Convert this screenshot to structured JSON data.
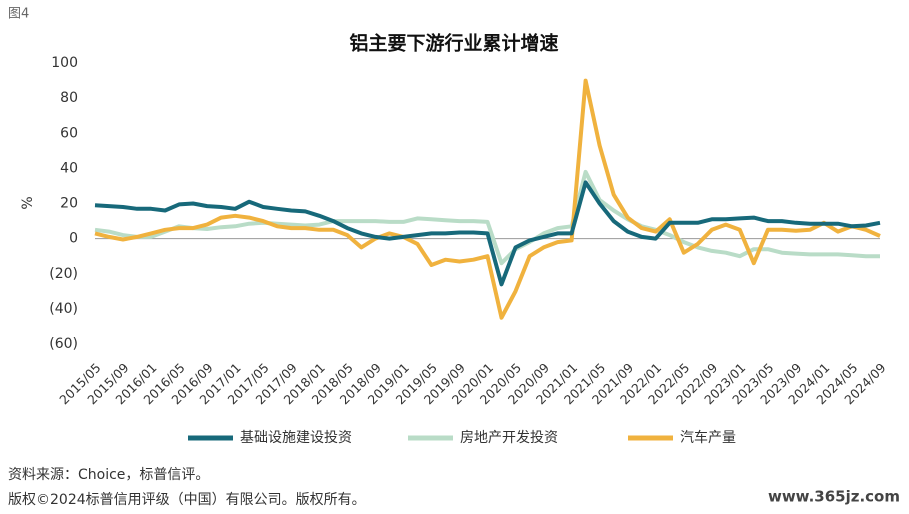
{
  "figure_label": "图4",
  "chart_data": {
    "type": "line",
    "title": "铝主要下游行业累计增速",
    "y_label": "%",
    "categories": [
      "2015/05",
      null,
      "2015/09",
      null,
      "2016/01",
      null,
      "2016/05",
      null,
      "2016/09",
      null,
      "2017/01",
      null,
      "2017/05",
      null,
      "2017/09",
      null,
      "2018/01",
      null,
      "2018/05",
      null,
      "2018/09",
      null,
      "2019/01",
      null,
      "2019/05",
      null,
      "2019/09",
      null,
      "2020/01",
      null,
      "2020/05",
      null,
      "2020/09",
      null,
      "2021/01",
      null,
      "2021/05",
      null,
      "2021/09",
      null,
      "2022/01",
      null,
      "2022/05",
      null,
      "2022/09",
      null,
      "2023/01",
      null,
      "2023/05",
      null,
      "2023/09",
      null,
      "2024/01",
      null,
      "2024/05",
      null,
      "2024/09"
    ],
    "series": [
      {
        "name": "基础设施建设投资",
        "color": "#17697a",
        "values": [
          19,
          18.5,
          18,
          17,
          17,
          16,
          19.5,
          20,
          18.5,
          18,
          17,
          21,
          18,
          17,
          16,
          15.5,
          13,
          10,
          6,
          3,
          1,
          0,
          1,
          2,
          3,
          3,
          3.5,
          3.5,
          3,
          -26,
          -5,
          -1,
          1,
          3,
          3,
          32,
          20,
          10,
          4,
          1,
          0,
          9,
          9,
          9,
          11,
          11,
          11.5,
          12,
          10,
          10,
          9,
          8.5,
          8.5,
          8.5,
          7,
          7.5,
          9
        ]
      },
      {
        "name": "房地产开发投资",
        "color": "#b9dcc7",
        "values": [
          5,
          4,
          2,
          1,
          1,
          4,
          7,
          6,
          5.5,
          6.5,
          7,
          8.5,
          9,
          8.5,
          8,
          7.5,
          8,
          10,
          10,
          10,
          10,
          9.5,
          9.5,
          11.5,
          11,
          10.5,
          10,
          10,
          9.5,
          -14,
          -6,
          -2,
          3,
          6,
          7,
          38,
          22,
          16,
          11,
          7,
          5,
          2,
          -2,
          -5,
          -7,
          -8,
          -10,
          -6,
          -6,
          -8,
          -8.5,
          -9,
          -9,
          -9,
          -9.5,
          -10,
          -10
        ]
      },
      {
        "name": "汽车产量",
        "color": "#f0b23e",
        "values": [
          3,
          1,
          -0.5,
          1,
          3,
          5,
          6,
          6,
          8,
          12,
          13,
          12,
          10,
          7,
          6,
          6,
          5,
          5,
          2,
          -5,
          0,
          3,
          1,
          -3,
          -15,
          -12,
          -13,
          -12,
          -10,
          -45,
          -30,
          -10,
          -5,
          -2,
          -1,
          90,
          53,
          25,
          12,
          6,
          4,
          11,
          -8,
          -3,
          5,
          8,
          5,
          -14,
          5,
          5,
          4.5,
          5,
          9,
          4,
          7,
          5,
          1.5
        ]
      }
    ],
    "ylim": [
      -60,
      100
    ],
    "yticks": [
      {
        "value": -60,
        "label": "(60)"
      },
      {
        "value": -40,
        "label": "(40)"
      },
      {
        "value": -20,
        "label": "(20)"
      },
      0,
      20,
      40,
      60,
      80,
      100
    ]
  },
  "footer": {
    "source": "资料来源：Choice，标普信评。",
    "copyright": "版权©2024标普信用评级（中国）有限公司。版权所有。",
    "watermark": "www.365jz.com"
  }
}
